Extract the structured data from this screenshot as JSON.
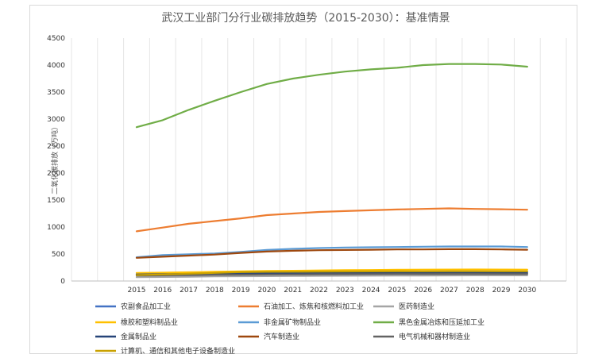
{
  "chart_data": {
    "type": "line",
    "title": "武汉工业部门分行业碳排放趋势（2015-2030）：基准情景",
    "xlabel": "",
    "ylabel": "二氧化碳排放（万吨）",
    "ylim": [
      0,
      4500
    ],
    "yticks": [
      0,
      500,
      1000,
      1500,
      2000,
      2500,
      3000,
      3500,
      4000,
      4500
    ],
    "grid": "vertical",
    "legend_position": "bottom",
    "x": [
      "2015",
      "2016",
      "2017",
      "2018",
      "2019",
      "2020",
      "2021",
      "2022",
      "2023",
      "2024",
      "2025",
      "2026",
      "2027",
      "2028",
      "2029",
      "2030"
    ],
    "series": [
      {
        "name": "农副食品加工业",
        "color": "#4472C4",
        "values": [
          130,
          140,
          145,
          150,
          155,
          160,
          162,
          165,
          167,
          168,
          170,
          171,
          172,
          173,
          172,
          170
        ]
      },
      {
        "name": "石油加工、炼焦和核燃料加工业",
        "color": "#ED7D31",
        "values": [
          920,
          990,
          1060,
          1110,
          1160,
          1220,
          1250,
          1280,
          1295,
          1310,
          1325,
          1335,
          1345,
          1335,
          1330,
          1320
        ]
      },
      {
        "name": "医药制造业",
        "color": "#A5A5A5",
        "values": [
          70,
          75,
          80,
          85,
          88,
          90,
          92,
          95,
          97,
          99,
          100,
          102,
          103,
          104,
          104,
          104
        ]
      },
      {
        "name": "橡胶和塑料制品业",
        "color": "#FFC000",
        "values": [
          150,
          155,
          162,
          170,
          180,
          185,
          190,
          195,
          200,
          203,
          207,
          210,
          212,
          213,
          212,
          210
        ]
      },
      {
        "name": "非金属矿物制品业",
        "color": "#5B9BD5",
        "values": [
          440,
          480,
          495,
          510,
          540,
          575,
          595,
          610,
          620,
          625,
          630,
          635,
          640,
          640,
          640,
          630
        ]
      },
      {
        "name": "黑色金属冶炼和压延加工业",
        "color": "#70AD47",
        "values": [
          2850,
          2980,
          3170,
          3340,
          3500,
          3650,
          3750,
          3820,
          3880,
          3920,
          3950,
          4000,
          4020,
          4020,
          4010,
          3970
        ]
      },
      {
        "name": "金属制品业",
        "color": "#264478",
        "values": [
          120,
          125,
          130,
          135,
          138,
          140,
          142,
          145,
          146,
          147,
          148,
          148,
          149,
          149,
          148,
          147
        ]
      },
      {
        "name": "汽车制造业",
        "color": "#9E480E",
        "values": [
          430,
          450,
          470,
          490,
          520,
          545,
          560,
          570,
          575,
          580,
          585,
          585,
          590,
          590,
          585,
          580
        ]
      },
      {
        "name": "电气机械和器材制造业",
        "color": "#636363",
        "values": [
          100,
          105,
          110,
          115,
          118,
          120,
          122,
          125,
          127,
          128,
          129,
          130,
          131,
          131,
          130,
          130
        ]
      },
      {
        "name": "计算机、通信和其他电子设备制造业",
        "color": "#C9A100",
        "values": [
          110,
          120,
          135,
          150,
          165,
          170,
          172,
          175,
          177,
          178,
          179,
          180,
          181,
          181,
          180,
          179
        ]
      }
    ]
  }
}
